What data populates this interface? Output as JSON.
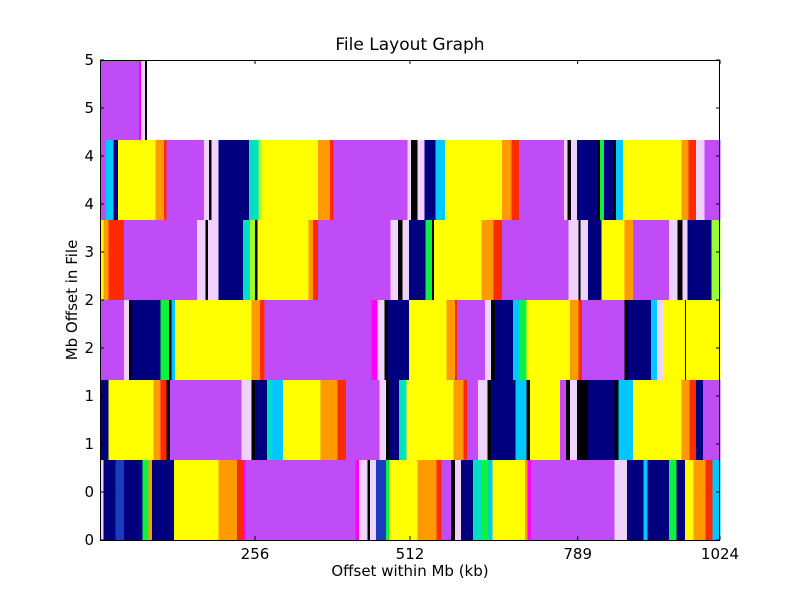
{
  "chart_data": {
    "type": "heatmap",
    "title": "File Layout Graph",
    "xlabel": "Offset within Mb (kb)",
    "ylabel": "Mb Offset in File",
    "x_ticks": [
      "256",
      "512",
      "789",
      "1024"
    ],
    "x_tick_values": [
      256,
      512,
      789,
      1024
    ],
    "y_ticks": [
      "0",
      "0",
      "1",
      "1",
      "2",
      "2",
      "3",
      "4",
      "4",
      "5",
      "5"
    ],
    "xlim": [
      0,
      1024
    ],
    "ylim": [
      0,
      6
    ],
    "grid": false,
    "legend": "none",
    "colormap": "gist_ncar",
    "colors": {
      "navy": "#00007f",
      "blue": "#1c3cbf",
      "cyan": "#00c8ff",
      "teal": "#00e0c0",
      "green": "#10f040",
      "lime": "#9cff2e",
      "yellow": "#ffff00",
      "gold": "#ffd600",
      "orange": "#ff9b00",
      "red": "#ff2a00",
      "magenta": "#ff00ff",
      "purple": "#c04cf8",
      "lavender": "#f0d2ff",
      "black": "#000000",
      "white": "#ffffff"
    },
    "rows": [
      {
        "mb": 0,
        "segments": [
          [
            "lavender",
            0,
            6
          ],
          [
            "navy",
            6,
            26
          ],
          [
            "blue",
            26,
            40
          ],
          [
            "navy",
            40,
            70
          ],
          [
            "green",
            70,
            80
          ],
          [
            "orange",
            80,
            86
          ],
          [
            "navy",
            86,
            122
          ],
          [
            "yellow",
            122,
            196
          ],
          [
            "orange",
            196,
            226
          ],
          [
            "red",
            226,
            236
          ],
          [
            "magenta",
            236,
            240
          ],
          [
            "purple",
            240,
            422
          ],
          [
            "magenta",
            422,
            428
          ],
          [
            "lavender",
            428,
            442
          ],
          [
            "black",
            442,
            446
          ],
          [
            "lavender",
            446,
            456
          ],
          [
            "blue",
            456,
            472
          ],
          [
            "green",
            472,
            478
          ],
          [
            "yellow",
            478,
            524
          ],
          [
            "orange",
            524,
            556
          ],
          [
            "red",
            556,
            564
          ],
          [
            "purple",
            564,
            580
          ],
          [
            "black",
            580,
            586
          ],
          [
            "lavender",
            586,
            596
          ],
          [
            "navy",
            596,
            616
          ],
          [
            "teal",
            616,
            630
          ],
          [
            "green",
            630,
            642
          ],
          [
            "cyan",
            642,
            648
          ],
          [
            "yellow",
            648,
            702
          ],
          [
            "orange",
            702,
            706
          ],
          [
            "magenta",
            706,
            712
          ],
          [
            "purple",
            712,
            850
          ],
          [
            "lavender",
            850,
            870
          ],
          [
            "navy",
            870,
            898
          ],
          [
            "cyan",
            898,
            904
          ],
          [
            "navy",
            904,
            940
          ],
          [
            "green",
            940,
            952
          ],
          [
            "navy",
            952,
            966
          ],
          [
            "yellow",
            966,
            980
          ],
          [
            "orange",
            980,
            1000
          ],
          [
            "red",
            1000,
            1012
          ],
          [
            "cyan",
            1012,
            1024
          ]
        ]
      },
      {
        "mb": 1,
        "segments": [
          [
            "navy",
            0,
            14
          ],
          [
            "yellow",
            14,
            88
          ],
          [
            "orange",
            88,
            100
          ],
          [
            "red",
            100,
            110
          ],
          [
            "black",
            110,
            116
          ],
          [
            "purple",
            116,
            234
          ],
          [
            "lavender",
            234,
            250
          ],
          [
            "black",
            250,
            256
          ],
          [
            "navy",
            256,
            276
          ],
          [
            "teal",
            276,
            284
          ],
          [
            "cyan",
            284,
            302
          ],
          [
            "yellow",
            302,
            364
          ],
          [
            "orange",
            364,
            392
          ],
          [
            "red",
            392,
            406
          ],
          [
            "purple",
            406,
            462
          ],
          [
            "lavender",
            462,
            472
          ],
          [
            "black",
            472,
            478
          ],
          [
            "navy",
            478,
            494
          ],
          [
            "teal",
            494,
            506
          ],
          [
            "yellow",
            506,
            584
          ],
          [
            "orange",
            584,
            600
          ],
          [
            "red",
            600,
            606
          ],
          [
            "purple",
            606,
            624
          ],
          [
            "lavender",
            624,
            640
          ],
          [
            "black",
            640,
            646
          ],
          [
            "navy",
            646,
            686
          ],
          [
            "cyan",
            686,
            704
          ],
          [
            "black",
            704,
            710
          ],
          [
            "yellow",
            710,
            760
          ],
          [
            "purple",
            760,
            770
          ],
          [
            "black",
            770,
            776
          ],
          [
            "lavender",
            776,
            788
          ],
          [
            "black",
            788,
            806
          ],
          [
            "navy",
            806,
            850
          ],
          [
            "black",
            850,
            856
          ],
          [
            "cyan",
            856,
            880
          ],
          [
            "yellow",
            880,
            960
          ],
          [
            "orange",
            960,
            974
          ],
          [
            "red",
            974,
            984
          ],
          [
            "navy",
            984,
            996
          ],
          [
            "purple",
            996,
            1024
          ]
        ]
      },
      {
        "mb": 2,
        "segments": [
          [
            "purple",
            0,
            40
          ],
          [
            "lavender",
            40,
            48
          ],
          [
            "black",
            48,
            52
          ],
          [
            "navy",
            52,
            100
          ],
          [
            "green",
            100,
            114
          ],
          [
            "black",
            114,
            118
          ],
          [
            "cyan",
            118,
            124
          ],
          [
            "yellow",
            124,
            250
          ],
          [
            "orange",
            250,
            264
          ],
          [
            "red",
            264,
            272
          ],
          [
            "purple",
            272,
            448
          ],
          [
            "magenta",
            448,
            458
          ],
          [
            "lavender",
            458,
            470
          ],
          [
            "black",
            470,
            476
          ],
          [
            "navy",
            476,
            510
          ],
          [
            "yellow",
            510,
            572
          ],
          [
            "orange",
            572,
            586
          ],
          [
            "red",
            586,
            590
          ],
          [
            "purple",
            590,
            636
          ],
          [
            "lavender",
            636,
            646
          ],
          [
            "black",
            646,
            652
          ],
          [
            "navy",
            652,
            682
          ],
          [
            "cyan",
            682,
            692
          ],
          [
            "green",
            692,
            704
          ],
          [
            "yellow",
            704,
            776
          ],
          [
            "orange",
            776,
            790
          ],
          [
            "red",
            790,
            796
          ],
          [
            "purple",
            796,
            866
          ],
          [
            "black",
            866,
            872
          ],
          [
            "navy",
            872,
            910
          ],
          [
            "cyan",
            910,
            920
          ],
          [
            "lavender",
            920,
            930
          ],
          [
            "yellow",
            930,
            966
          ],
          [
            "navy",
            966,
            968
          ],
          [
            "yellow",
            968,
            1024
          ]
        ]
      },
      {
        "mb": 3,
        "segments": [
          [
            "yellow",
            0,
            6
          ],
          [
            "orange",
            6,
            14
          ],
          [
            "red",
            14,
            40
          ],
          [
            "purple",
            40,
            160
          ],
          [
            "lavender",
            160,
            174
          ],
          [
            "black",
            174,
            178
          ],
          [
            "lavender",
            178,
            196
          ],
          [
            "navy",
            196,
            236
          ],
          [
            "teal",
            236,
            248
          ],
          [
            "lime",
            248,
            256
          ],
          [
            "black",
            256,
            260
          ],
          [
            "yellow",
            260,
            344
          ],
          [
            "orange",
            344,
            352
          ],
          [
            "red",
            352,
            360
          ],
          [
            "purple",
            360,
            480
          ],
          [
            "lavender",
            480,
            492
          ],
          [
            "black",
            492,
            500
          ],
          [
            "lavender",
            500,
            510
          ],
          [
            "navy",
            510,
            538
          ],
          [
            "green",
            538,
            548
          ],
          [
            "black",
            548,
            552
          ],
          [
            "yellow",
            552,
            630
          ],
          [
            "orange",
            630,
            650
          ],
          [
            "red",
            650,
            664
          ],
          [
            "purple",
            664,
            774
          ],
          [
            "lavender",
            774,
            790
          ],
          [
            "black",
            790,
            794
          ],
          [
            "lavender",
            794,
            806
          ],
          [
            "navy",
            806,
            828
          ],
          [
            "yellow",
            828,
            866
          ],
          [
            "orange",
            866,
            880
          ],
          [
            "purple",
            880,
            940
          ],
          [
            "lavender",
            940,
            954
          ],
          [
            "black",
            954,
            962
          ],
          [
            "lavender",
            962,
            970
          ],
          [
            "navy",
            970,
            1010
          ],
          [
            "lime",
            1010,
            1024
          ]
        ]
      },
      {
        "mb": 4,
        "segments": [
          [
            "purple",
            0,
            10
          ],
          [
            "cyan",
            10,
            22
          ],
          [
            "navy",
            22,
            30
          ],
          [
            "yellow",
            30,
            92
          ],
          [
            "orange",
            92,
            106
          ],
          [
            "red",
            106,
            110
          ],
          [
            "purple",
            110,
            172
          ],
          [
            "lavender",
            172,
            180
          ],
          [
            "black",
            180,
            184
          ],
          [
            "lavender",
            184,
            196
          ],
          [
            "navy",
            196,
            246
          ],
          [
            "teal",
            246,
            262
          ],
          [
            "lime",
            262,
            266
          ],
          [
            "yellow",
            266,
            360
          ],
          [
            "orange",
            360,
            380
          ],
          [
            "red",
            380,
            386
          ],
          [
            "purple",
            386,
            508
          ],
          [
            "lavender",
            508,
            514
          ],
          [
            "black",
            514,
            524
          ],
          [
            "lavender",
            524,
            536
          ],
          [
            "navy",
            536,
            554
          ],
          [
            "cyan",
            554,
            570
          ],
          [
            "yellow",
            570,
            664
          ],
          [
            "orange",
            664,
            680
          ],
          [
            "red",
            680,
            692
          ],
          [
            "purple",
            692,
            766
          ],
          [
            "lavender",
            766,
            772
          ],
          [
            "black",
            772,
            778
          ],
          [
            "lavender",
            778,
            788
          ],
          [
            "navy",
            788,
            822
          ],
          [
            "black",
            822,
            826
          ],
          [
            "green",
            826,
            832
          ],
          [
            "navy",
            832,
            848
          ],
          [
            "black",
            848,
            852
          ],
          [
            "cyan",
            852,
            864
          ],
          [
            "yellow",
            864,
            960
          ],
          [
            "orange",
            960,
            972
          ],
          [
            "red",
            972,
            984
          ],
          [
            "lavender",
            984,
            998
          ],
          [
            "purple",
            998,
            1024
          ]
        ]
      },
      {
        "mb": 5,
        "segments": [
          [
            "purple",
            0,
            64
          ],
          [
            "magenta",
            64,
            68
          ],
          [
            "lavender",
            68,
            74
          ],
          [
            "black",
            74,
            78
          ],
          [
            "white",
            78,
            1024
          ]
        ]
      }
    ]
  }
}
